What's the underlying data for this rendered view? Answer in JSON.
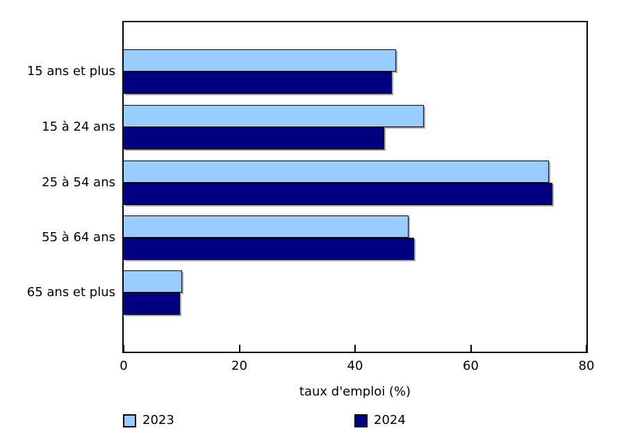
{
  "chart_data": {
    "type": "bar",
    "orientation": "horizontal",
    "title": "",
    "categories": [
      "15 ans et plus",
      "15 à 24 ans",
      "25 à 54 ans",
      "55 à 64 ans",
      "65 ans et plus"
    ],
    "series": [
      {
        "name": "2023",
        "color": "#99ccff",
        "values": [
          47.1,
          51.9,
          73.5,
          49.3,
          10.1
        ]
      },
      {
        "name": "2024",
        "color": "#000080",
        "values": [
          46.4,
          45.1,
          74.1,
          50.2,
          9.7
        ]
      }
    ],
    "xlabel": "taux d'emploi (%)",
    "xlim": [
      0,
      80
    ],
    "xticks": [
      0,
      20,
      40,
      60,
      80
    ],
    "grid": false,
    "legend_position": "bottom",
    "bar_edge_color": "#000000",
    "bar_shadow_color": "#a9a9a9",
    "axis_color": "#000000",
    "background_color": "#ffffff"
  }
}
